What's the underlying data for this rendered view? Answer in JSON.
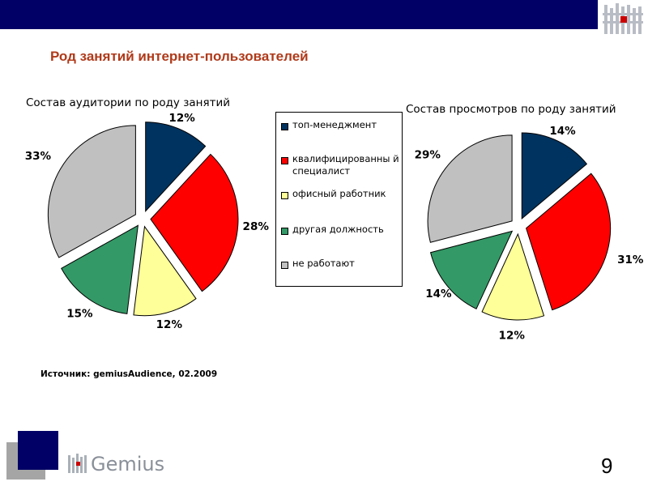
{
  "header": {
    "title": "Род занятий интернет-пользователей"
  },
  "colors": {
    "topbar": "#000066",
    "title": "#b03a1a",
    "slices": [
      "#00335f",
      "#ff0000",
      "#ffff99",
      "#339966",
      "#c0c0c0"
    ]
  },
  "chart_data": [
    {
      "type": "pie",
      "title": "Состав аудитории по роду занятий",
      "categories": [
        "топ-менеджмент",
        "квалифицированный специалист",
        "офисный работник",
        "другая должность",
        "не работают"
      ],
      "values": [
        12,
        28,
        12,
        15,
        33
      ],
      "labels": [
        "12%",
        "28%",
        "12%",
        "15%",
        "33%"
      ],
      "exploded": true,
      "legend": "shared, between charts"
    },
    {
      "type": "pie",
      "title": "Состав просмотров по роду занятий",
      "categories": [
        "топ-менеджмент",
        "квалифицированный специалист",
        "офисный работник",
        "другая должность",
        "не работают"
      ],
      "values": [
        14,
        31,
        12,
        14,
        29
      ],
      "labels": [
        "14%",
        "31%",
        "12%",
        "14%",
        "29%"
      ],
      "exploded": true,
      "legend": "shared, between charts"
    }
  ],
  "legend": {
    "items": [
      {
        "label": "топ-менеджмент",
        "color": "#00335f"
      },
      {
        "label": "квалифицированны й специалист",
        "color": "#ff0000"
      },
      {
        "label": "офисный работник",
        "color": "#ffff99"
      },
      {
        "label": "другая должность",
        "color": "#339966"
      },
      {
        "label": "не работают",
        "color": "#c0c0c0"
      }
    ]
  },
  "source": "Источник: gemiusAudience, 02.2009",
  "footer": {
    "brand": "Gemius",
    "page_number": "9"
  }
}
